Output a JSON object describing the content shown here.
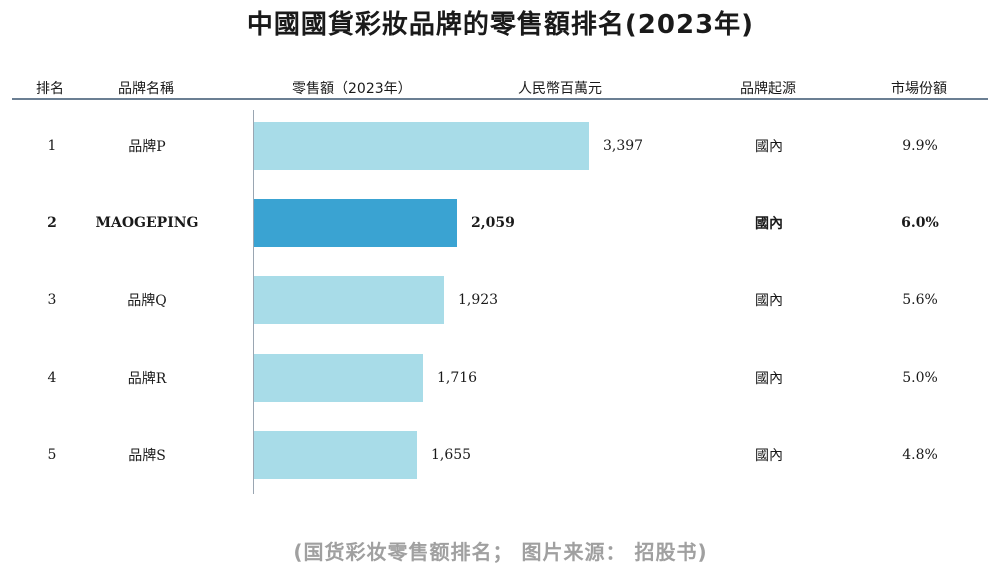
{
  "title": "中國國貨彩妝品牌的零售額排名(2023年)",
  "footer": "(国货彩妆零售额排名； 图片来源： 招股书)",
  "headers": {
    "rank": "排名",
    "brand": "品牌名稱",
    "sales": "零售額（2023年）",
    "unit": "人民幣百萬元",
    "origin": "品牌起源",
    "share": "市場份額"
  },
  "colors": {
    "bar": "#a8dce8",
    "highlight": "#3aa3d2"
  },
  "chart_data": {
    "type": "bar",
    "orientation": "horizontal",
    "title": "中國國貨彩妝品牌的零售額排名(2023年)",
    "unit": "人民幣百萬元",
    "categories": [
      "品牌P",
      "MAOGEPING",
      "品牌Q",
      "品牌R",
      "品牌S"
    ],
    "values": [
      3397,
      2059,
      1923,
      1716,
      1655
    ],
    "highlight_index": 1
  },
  "rows": [
    {
      "rank": "1",
      "brand": "品牌P",
      "value": "3,397",
      "origin": "國內",
      "share": "9.9%"
    },
    {
      "rank": "2",
      "brand": "MAOGEPING",
      "value": "2,059",
      "origin": "國內",
      "share": "6.0%"
    },
    {
      "rank": "3",
      "brand": "品牌Q",
      "value": "1,923",
      "origin": "國內",
      "share": "5.6%"
    },
    {
      "rank": "4",
      "brand": "品牌R",
      "value": "1,716",
      "origin": "國內",
      "share": "5.0%"
    },
    {
      "rank": "5",
      "brand": "品牌S",
      "value": "1,655",
      "origin": "國內",
      "share": "4.8%"
    }
  ]
}
